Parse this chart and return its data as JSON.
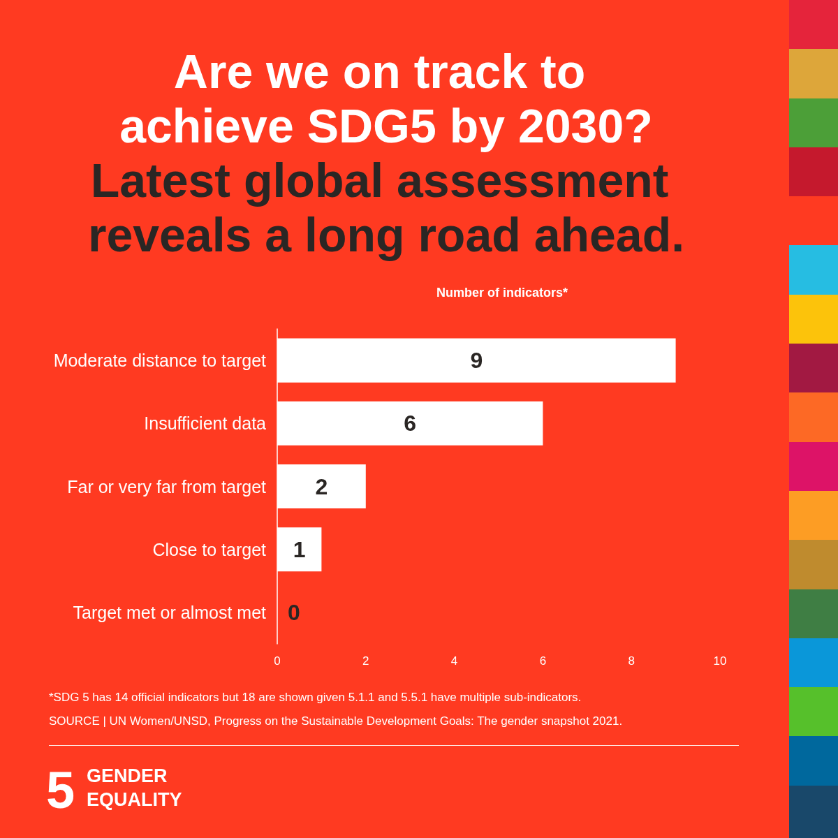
{
  "chart_data": {
    "type": "bar",
    "orientation": "horizontal",
    "title": "Are we on track to achieve SDG5 by 2030?",
    "subtitle": "Latest global assessment reveals a long road ahead.",
    "xlabel": "Number of indicators*",
    "categories": [
      "Moderate distance to target",
      "Insufficient data",
      "Far or very far from target",
      "Close to target",
      "Target met or almost met"
    ],
    "values": [
      9,
      6,
      2,
      1,
      0
    ],
    "color": "#ffffff",
    "xlim": [
      0,
      10
    ],
    "xticks": [
      0,
      2,
      4,
      6,
      8,
      10
    ],
    "data_labels": true,
    "annotations": [
      "*SDG 5 has 14 official indicators but 18 are shown given 5.1.1 and 5.5.1 have multiple sub-indicators.",
      "SOURCE | UN Women/UNSD, Progress on the Sustainable Development Goals: The gender snapshot 2021.",
      "5",
      "GENDER EQUALITY"
    ]
  }
}
